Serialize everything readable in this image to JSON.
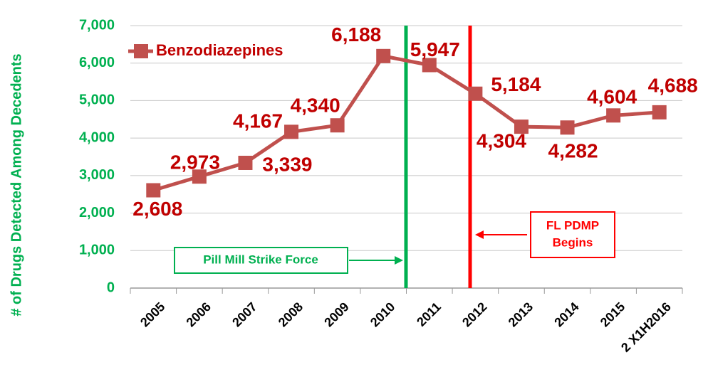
{
  "chart_data": {
    "type": "line",
    "y_label": "# of Drugs Detected Among Decedents",
    "categories": [
      "2005",
      "2006",
      "2007",
      "2008",
      "2009",
      "2010",
      "2011",
      "2012",
      "2013",
      "2014",
      "2015",
      "2 X1H2016"
    ],
    "series": [
      {
        "name": "Benzodiazepines",
        "color": "#c0504d",
        "values": [
          2608,
          2973,
          3339,
          4167,
          4340,
          6188,
          5947,
          5184,
          4304,
          4282,
          4604,
          4688
        ],
        "value_labels": [
          "2,608",
          "2,973",
          "3,339",
          "4,167",
          "4,340",
          "6,188",
          "5,947",
          "5,184",
          "4,304",
          "4,282",
          "4,604",
          "4,688"
        ]
      }
    ],
    "ylim": [
      0,
      7000
    ],
    "yticks": [
      0,
      {
        "value": 1000,
        "label": "1,000"
      },
      {
        "value": 2000,
        "label": "2,000"
      },
      {
        "value": 3000,
        "label": "3,000"
      },
      {
        "value": 4000,
        "label": "4,000"
      },
      {
        "value": 5000,
        "label": "5,000"
      },
      {
        "value": 6000,
        "label": "6,000"
      },
      {
        "value": 7000,
        "label": "7,000"
      }
    ],
    "grid": true,
    "legend": "top-left",
    "annotations": [
      "Pill Mill Strike Force",
      "FL PDMP",
      "Begins"
    ]
  }
}
